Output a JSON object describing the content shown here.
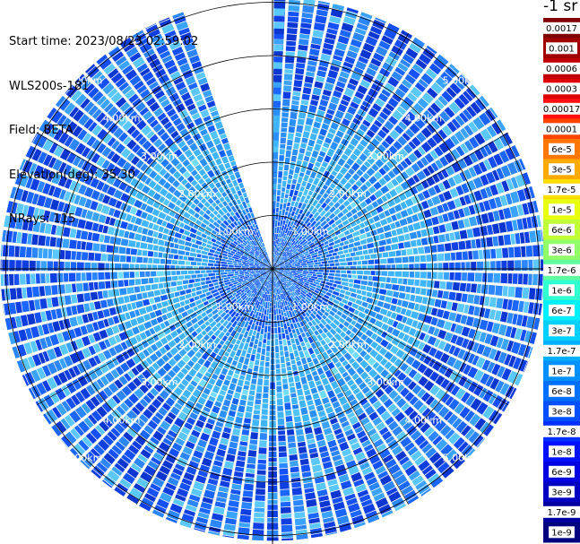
{
  "info": {
    "start_time": "Start time: 2023/08/23 02:59:02",
    "instrument": "WLS200s-181",
    "field": "Field: BETA",
    "elevation": "Elevation(deg): 35.30",
    "nrays": "NRays: 115"
  },
  "chart_data": {
    "type": "ppi",
    "field": "BETA",
    "range_rings_km": [
      1,
      2,
      3,
      4,
      5
    ],
    "range_labels": [
      "1.00km",
      "2.00km",
      "3.00km",
      "4.00km",
      "5.00km"
    ],
    "nrays": 115,
    "elevation_deg": 35.3,
    "data_gap_azimuth_deg": [
      -19,
      0
    ],
    "colorbar": {
      "title": "-1 sr",
      "labels": [
        "0.0017",
        "0.001",
        "0.0006",
        "0.0003",
        "0.00017",
        "0.0001",
        "6e-5",
        "3e-5",
        "1.7e-5",
        "1e-5",
        "6e-6",
        "3e-6",
        "1.7e-6",
        "1e-6",
        "6e-7",
        "3e-7",
        "1.7e-7",
        "1e-7",
        "6e-8",
        "3e-8",
        "1.7e-8",
        "1e-8",
        "6e-9",
        "3e-9",
        "1.7e-9",
        "1e-9"
      ],
      "colors": [
        "#800000",
        "#a00000",
        "#c00000",
        "#e00000",
        "#ff1010",
        "#ff4400",
        "#ff7700",
        "#ffaa00",
        "#ffdd00",
        "#e8ff10",
        "#c0ff38",
        "#90ff68",
        "#60ffa0",
        "#30ffd0",
        "#00f0ff",
        "#00d0ff",
        "#00b0ff",
        "#0090ff",
        "#0070ff",
        "#0050ff",
        "#0030ff",
        "#0010ff",
        "#0000e0",
        "#0000c0",
        "#0000a0",
        "#000080"
      ]
    }
  }
}
